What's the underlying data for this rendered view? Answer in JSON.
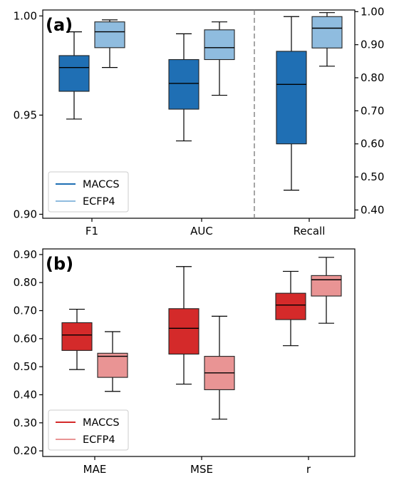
{
  "chart_data": [
    {
      "type": "box",
      "panel_label": "(a)",
      "categories": [
        "F1",
        "AUC",
        "Recall"
      ],
      "axes": {
        "left": {
          "ylim": [
            0.898,
            1.003
          ],
          "ticks": [
            "0.90",
            "0.95",
            "1.00"
          ],
          "applies_to": [
            "F1",
            "AUC"
          ]
        },
        "right": {
          "ylim": [
            0.375,
            1.005
          ],
          "ticks": [
            "0.40",
            "0.50",
            "0.60",
            "0.70",
            "0.80",
            "0.90",
            "1.00"
          ],
          "applies_to": [
            "Recall"
          ]
        }
      },
      "divider": "dashed vertical line between AUC and Recall",
      "legend": {
        "position": "lower-left",
        "entries": [
          "MACCS",
          "ECFP4"
        ]
      },
      "series": [
        {
          "name": "MACCS",
          "color": "#1f6fb4",
          "boxes": [
            {
              "category": "F1",
              "axis": "left",
              "whisker_low": 0.948,
              "q1": 0.962,
              "median": 0.974,
              "q3": 0.98,
              "whisker_high": 0.992
            },
            {
              "category": "AUC",
              "axis": "left",
              "whisker_low": 0.937,
              "q1": 0.953,
              "median": 0.966,
              "q3": 0.978,
              "whisker_high": 0.991
            },
            {
              "category": "Recall",
              "axis": "right",
              "whisker_low": 0.46,
              "q1": 0.6,
              "median": 0.78,
              "q3": 0.88,
              "whisker_high": 0.985
            }
          ]
        },
        {
          "name": "ECFP4",
          "color": "#8fbcdf",
          "boxes": [
            {
              "category": "F1",
              "axis": "left",
              "whisker_low": 0.974,
              "q1": 0.984,
              "median": 0.992,
              "q3": 0.997,
              "whisker_high": 0.998
            },
            {
              "category": "AUC",
              "axis": "left",
              "whisker_low": 0.96,
              "q1": 0.978,
              "median": 0.984,
              "q3": 0.993,
              "whisker_high": 0.997
            },
            {
              "category": "Recall",
              "axis": "right",
              "whisker_low": 0.835,
              "q1": 0.89,
              "median": 0.95,
              "q3": 0.985,
              "whisker_high": 0.997
            }
          ]
        }
      ]
    },
    {
      "type": "box",
      "panel_label": "(b)",
      "categories": [
        "MAE",
        "MSE",
        "r"
      ],
      "axes": {
        "left": {
          "ylim": [
            0.18,
            0.92
          ],
          "ticks": [
            "0.20",
            "0.30",
            "0.40",
            "0.50",
            "0.60",
            "0.70",
            "0.80",
            "0.90"
          ]
        }
      },
      "legend": {
        "position": "lower-left",
        "entries": [
          "MACCS",
          "ECFP4"
        ]
      },
      "series": [
        {
          "name": "MACCS",
          "color": "#d42a2a",
          "boxes": [
            {
              "category": "MAE",
              "axis": "left",
              "whisker_low": 0.49,
              "q1": 0.558,
              "median": 0.613,
              "q3": 0.657,
              "whisker_high": 0.705
            },
            {
              "category": "MSE",
              "axis": "left",
              "whisker_low": 0.438,
              "q1": 0.545,
              "median": 0.637,
              "q3": 0.707,
              "whisker_high": 0.857
            },
            {
              "category": "r",
              "axis": "left",
              "whisker_low": 0.575,
              "q1": 0.668,
              "median": 0.72,
              "q3": 0.762,
              "whisker_high": 0.84
            }
          ]
        },
        {
          "name": "ECFP4",
          "color": "#e99494",
          "boxes": [
            {
              "category": "MAE",
              "axis": "left",
              "whisker_low": 0.412,
              "q1": 0.462,
              "median": 0.537,
              "q3": 0.548,
              "whisker_high": 0.625
            },
            {
              "category": "MSE",
              "axis": "left",
              "whisker_low": 0.313,
              "q1": 0.418,
              "median": 0.478,
              "q3": 0.537,
              "whisker_high": 0.68
            },
            {
              "category": "r",
              "axis": "left",
              "whisker_low": 0.655,
              "q1": 0.752,
              "median": 0.81,
              "q3": 0.825,
              "whisker_high": 0.89
            }
          ]
        }
      ]
    }
  ]
}
